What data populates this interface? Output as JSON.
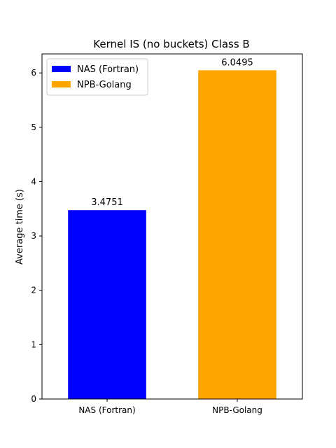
{
  "chart_data": {
    "type": "bar",
    "title": "Kernel IS (no buckets) Class B",
    "xlabel": "",
    "ylabel": "Average time (s)",
    "categories": [
      "NAS (Fortran)",
      "NPB-Golang"
    ],
    "values": [
      3.4751,
      6.0495
    ],
    "value_labels": [
      "3.4751",
      "6.0495"
    ],
    "colors": [
      "#0000ff",
      "#ffa500"
    ],
    "ylim": [
      0,
      6.35
    ],
    "yticks": [
      0,
      1,
      2,
      3,
      4,
      5,
      6
    ],
    "grid": false,
    "legend": {
      "placement": "top-left",
      "entries": [
        {
          "label": "NAS (Fortran)",
          "color": "#0000ff"
        },
        {
          "label": "NPB-Golang",
          "color": "#ffa500"
        }
      ]
    }
  }
}
